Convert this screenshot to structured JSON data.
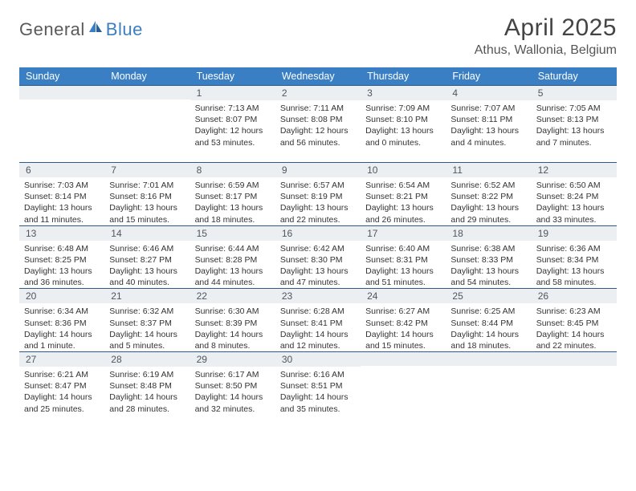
{
  "logo": {
    "part1": "General",
    "part2": "Blue"
  },
  "title": "April 2025",
  "location": "Athus, Wallonia, Belgium",
  "colors": {
    "header_bg": "#3a7fc4",
    "header_text": "#ffffff",
    "daynum_bg": "#eceff2",
    "daynum_border": "#2d5a87",
    "body_text": "#333333",
    "logo_gray": "#5a5a5a",
    "logo_blue": "#3a7fc4"
  },
  "weekdays": [
    "Sunday",
    "Monday",
    "Tuesday",
    "Wednesday",
    "Thursday",
    "Friday",
    "Saturday"
  ],
  "weeks": [
    [
      null,
      null,
      {
        "n": "1",
        "sr": "7:13 AM",
        "ss": "8:07 PM",
        "dl": "12 hours and 53 minutes."
      },
      {
        "n": "2",
        "sr": "7:11 AM",
        "ss": "8:08 PM",
        "dl": "12 hours and 56 minutes."
      },
      {
        "n": "3",
        "sr": "7:09 AM",
        "ss": "8:10 PM",
        "dl": "13 hours and 0 minutes."
      },
      {
        "n": "4",
        "sr": "7:07 AM",
        "ss": "8:11 PM",
        "dl": "13 hours and 4 minutes."
      },
      {
        "n": "5",
        "sr": "7:05 AM",
        "ss": "8:13 PM",
        "dl": "13 hours and 7 minutes."
      }
    ],
    [
      {
        "n": "6",
        "sr": "7:03 AM",
        "ss": "8:14 PM",
        "dl": "13 hours and 11 minutes."
      },
      {
        "n": "7",
        "sr": "7:01 AM",
        "ss": "8:16 PM",
        "dl": "13 hours and 15 minutes."
      },
      {
        "n": "8",
        "sr": "6:59 AM",
        "ss": "8:17 PM",
        "dl": "13 hours and 18 minutes."
      },
      {
        "n": "9",
        "sr": "6:57 AM",
        "ss": "8:19 PM",
        "dl": "13 hours and 22 minutes."
      },
      {
        "n": "10",
        "sr": "6:54 AM",
        "ss": "8:21 PM",
        "dl": "13 hours and 26 minutes."
      },
      {
        "n": "11",
        "sr": "6:52 AM",
        "ss": "8:22 PM",
        "dl": "13 hours and 29 minutes."
      },
      {
        "n": "12",
        "sr": "6:50 AM",
        "ss": "8:24 PM",
        "dl": "13 hours and 33 minutes."
      }
    ],
    [
      {
        "n": "13",
        "sr": "6:48 AM",
        "ss": "8:25 PM",
        "dl": "13 hours and 36 minutes."
      },
      {
        "n": "14",
        "sr": "6:46 AM",
        "ss": "8:27 PM",
        "dl": "13 hours and 40 minutes."
      },
      {
        "n": "15",
        "sr": "6:44 AM",
        "ss": "8:28 PM",
        "dl": "13 hours and 44 minutes."
      },
      {
        "n": "16",
        "sr": "6:42 AM",
        "ss": "8:30 PM",
        "dl": "13 hours and 47 minutes."
      },
      {
        "n": "17",
        "sr": "6:40 AM",
        "ss": "8:31 PM",
        "dl": "13 hours and 51 minutes."
      },
      {
        "n": "18",
        "sr": "6:38 AM",
        "ss": "8:33 PM",
        "dl": "13 hours and 54 minutes."
      },
      {
        "n": "19",
        "sr": "6:36 AM",
        "ss": "8:34 PM",
        "dl": "13 hours and 58 minutes."
      }
    ],
    [
      {
        "n": "20",
        "sr": "6:34 AM",
        "ss": "8:36 PM",
        "dl": "14 hours and 1 minute."
      },
      {
        "n": "21",
        "sr": "6:32 AM",
        "ss": "8:37 PM",
        "dl": "14 hours and 5 minutes."
      },
      {
        "n": "22",
        "sr": "6:30 AM",
        "ss": "8:39 PM",
        "dl": "14 hours and 8 minutes."
      },
      {
        "n": "23",
        "sr": "6:28 AM",
        "ss": "8:41 PM",
        "dl": "14 hours and 12 minutes."
      },
      {
        "n": "24",
        "sr": "6:27 AM",
        "ss": "8:42 PM",
        "dl": "14 hours and 15 minutes."
      },
      {
        "n": "25",
        "sr": "6:25 AM",
        "ss": "8:44 PM",
        "dl": "14 hours and 18 minutes."
      },
      {
        "n": "26",
        "sr": "6:23 AM",
        "ss": "8:45 PM",
        "dl": "14 hours and 22 minutes."
      }
    ],
    [
      {
        "n": "27",
        "sr": "6:21 AM",
        "ss": "8:47 PM",
        "dl": "14 hours and 25 minutes."
      },
      {
        "n": "28",
        "sr": "6:19 AM",
        "ss": "8:48 PM",
        "dl": "14 hours and 28 minutes."
      },
      {
        "n": "29",
        "sr": "6:17 AM",
        "ss": "8:50 PM",
        "dl": "14 hours and 32 minutes."
      },
      {
        "n": "30",
        "sr": "6:16 AM",
        "ss": "8:51 PM",
        "dl": "14 hours and 35 minutes."
      },
      null,
      null,
      null
    ]
  ],
  "labels": {
    "sunrise": "Sunrise:",
    "sunset": "Sunset:",
    "daylight": "Daylight:"
  }
}
